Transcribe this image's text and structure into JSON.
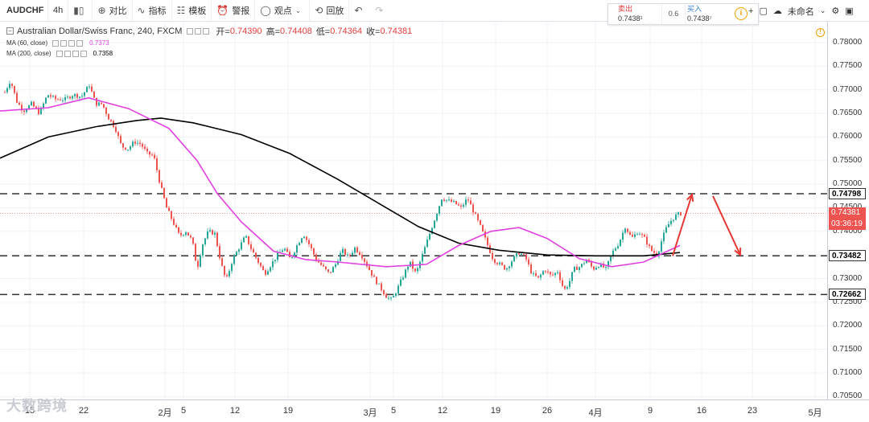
{
  "toolbar": {
    "symbol": "AUDCHF",
    "timeframe": "4h",
    "compare": "对比",
    "indicators": "指标",
    "templates": "模板",
    "alert": "警报",
    "ideas": "观点",
    "replay": "回放",
    "layout_name": "未命名"
  },
  "trade_panel": {
    "sell_label": "卖出",
    "sell_price": "0.7438¹",
    "spread": "0.6",
    "buy_label": "买入",
    "buy_price": "0.7438⁷"
  },
  "legend": {
    "title": "Australian Dollar/Swiss Franc, 240, FXCM",
    "open_label": "开=",
    "open": "0.74390",
    "high_label": "高=",
    "high": "0.74408",
    "low_label": "低=",
    "low": "0.74364",
    "close_label": "收=",
    "close": "0.74381",
    "ma60_label": "MA (60, close)",
    "ma60_value": "0.7373",
    "ma200_label": "MA (200, close)",
    "ma200_value": "0.7358"
  },
  "price_axis": {
    "labels": [
      "0.78000",
      "0.77500",
      "0.77000",
      "0.76500",
      "0.76000",
      "0.75500",
      "0.75000",
      "0.74500",
      "0.74000",
      "0.73500",
      "0.73000",
      "0.72500",
      "0.72000",
      "0.71500",
      "0.71000",
      "0.70500"
    ],
    "level_tags": [
      "0.74798",
      "0.73482",
      "0.72662"
    ],
    "current_price": "0.74381",
    "countdown": "03:36:19"
  },
  "time_axis": {
    "labels": [
      "15",
      "22",
      "2月",
      "5",
      "12",
      "19",
      "3月",
      "5",
      "12",
      "19",
      "26",
      "4月",
      "9",
      "16",
      "23",
      "5月"
    ]
  },
  "watermark": "大数跨境",
  "colors": {
    "up": "#26a69a",
    "down": "#ef5350",
    "ma60": "#e040e0",
    "ma200": "#000000",
    "arrows": "#e53935",
    "level_lines": "#333333",
    "price_tag_current": "#ef5350"
  },
  "chart_data": {
    "type": "candlestick",
    "title": "Australian Dollar/Swiss Franc, 240, FXCM",
    "ylim": [
      0.7045,
      0.7815
    ],
    "support_resistance_levels": [
      0.74798,
      0.73482,
      0.72662
    ],
    "current_price": 0.74381,
    "ma60_path": [
      [
        0,
        0.7655
      ],
      [
        60,
        0.7662
      ],
      [
        110,
        0.7683
      ],
      [
        160,
        0.766
      ],
      [
        210,
        0.7618
      ],
      [
        245,
        0.755
      ],
      [
        270,
        0.748
      ],
      [
        300,
        0.742
      ],
      [
        340,
        0.7358
      ],
      [
        380,
        0.734
      ],
      [
        420,
        0.7335
      ],
      [
        480,
        0.7325
      ],
      [
        530,
        0.733
      ],
      [
        570,
        0.737
      ],
      [
        610,
        0.74
      ],
      [
        645,
        0.7408
      ],
      [
        680,
        0.7385
      ],
      [
        720,
        0.7342
      ],
      [
        760,
        0.7325
      ],
      [
        800,
        0.7335
      ],
      [
        845,
        0.737
      ]
    ],
    "ma200_path": [
      [
        0,
        0.7555
      ],
      [
        60,
        0.76
      ],
      [
        120,
        0.7622
      ],
      [
        170,
        0.7635
      ],
      [
        200,
        0.764
      ],
      [
        240,
        0.763
      ],
      [
        300,
        0.7605
      ],
      [
        360,
        0.7565
      ],
      [
        420,
        0.751
      ],
      [
        470,
        0.746
      ],
      [
        520,
        0.741
      ],
      [
        570,
        0.7375
      ],
      [
        620,
        0.736
      ],
      [
        680,
        0.735
      ],
      [
        740,
        0.7348
      ],
      [
        800,
        0.7348
      ],
      [
        845,
        0.7355
      ]
    ],
    "price_path": [
      [
        5,
        0.7695
      ],
      [
        12,
        0.772
      ],
      [
        20,
        0.7675
      ],
      [
        28,
        0.7655
      ],
      [
        38,
        0.767
      ],
      [
        48,
        0.765
      ],
      [
        58,
        0.769
      ],
      [
        68,
        0.768
      ],
      [
        80,
        0.768
      ],
      [
        90,
        0.769
      ],
      [
        100,
        0.7685
      ],
      [
        110,
        0.771
      ],
      [
        118,
        0.767
      ],
      [
        126,
        0.767
      ],
      [
        134,
        0.764
      ],
      [
        142,
        0.762
      ],
      [
        150,
        0.758
      ],
      [
        158,
        0.7575
      ],
      [
        166,
        0.759
      ],
      [
        174,
        0.7585
      ],
      [
        182,
        0.7565
      ],
      [
        190,
        0.756
      ],
      [
        198,
        0.75
      ],
      [
        206,
        0.745
      ],
      [
        214,
        0.742
      ],
      [
        222,
        0.739
      ],
      [
        230,
        0.74
      ],
      [
        238,
        0.738
      ],
      [
        244,
        0.732
      ],
      [
        250,
        0.737
      ],
      [
        258,
        0.74
      ],
      [
        266,
        0.7395
      ],
      [
        274,
        0.733
      ],
      [
        280,
        0.7295
      ],
      [
        288,
        0.734
      ],
      [
        296,
        0.7365
      ],
      [
        304,
        0.739
      ],
      [
        312,
        0.736
      ],
      [
        320,
        0.7335
      ],
      [
        328,
        0.731
      ],
      [
        336,
        0.733
      ],
      [
        344,
        0.735
      ],
      [
        352,
        0.7365
      ],
      [
        360,
        0.734
      ],
      [
        368,
        0.737
      ],
      [
        376,
        0.7395
      ],
      [
        384,
        0.737
      ],
      [
        392,
        0.734
      ],
      [
        400,
        0.7325
      ],
      [
        408,
        0.731
      ],
      [
        416,
        0.733
      ],
      [
        424,
        0.736
      ],
      [
        432,
        0.7345
      ],
      [
        440,
        0.7365
      ],
      [
        448,
        0.735
      ],
      [
        456,
        0.7325
      ],
      [
        464,
        0.73
      ],
      [
        472,
        0.728
      ],
      [
        480,
        0.726
      ],
      [
        486,
        0.7255
      ],
      [
        492,
        0.7275
      ],
      [
        500,
        0.7305
      ],
      [
        508,
        0.7335
      ],
      [
        516,
        0.731
      ],
      [
        524,
        0.735
      ],
      [
        532,
        0.739
      ],
      [
        540,
        0.743
      ],
      [
        548,
        0.747
      ],
      [
        556,
        0.7465
      ],
      [
        564,
        0.746
      ],
      [
        572,
        0.745
      ],
      [
        580,
        0.747
      ],
      [
        588,
        0.744
      ],
      [
        596,
        0.741
      ],
      [
        604,
        0.7375
      ],
      [
        612,
        0.734
      ],
      [
        620,
        0.733
      ],
      [
        628,
        0.732
      ],
      [
        636,
        0.734
      ],
      [
        644,
        0.7355
      ],
      [
        652,
        0.7345
      ],
      [
        660,
        0.731
      ],
      [
        668,
        0.73
      ],
      [
        676,
        0.732
      ],
      [
        684,
        0.7305
      ],
      [
        692,
        0.7315
      ],
      [
        700,
        0.7275
      ],
      [
        706,
        0.729
      ],
      [
        712,
        0.732
      ],
      [
        720,
        0.7325
      ],
      [
        728,
        0.734
      ],
      [
        736,
        0.732
      ],
      [
        744,
        0.733
      ],
      [
        752,
        0.732
      ],
      [
        760,
        0.7355
      ],
      [
        768,
        0.7375
      ],
      [
        776,
        0.741
      ],
      [
        784,
        0.7385
      ],
      [
        792,
        0.74
      ],
      [
        800,
        0.7385
      ],
      [
        808,
        0.736
      ],
      [
        816,
        0.735
      ],
      [
        822,
        0.7385
      ],
      [
        828,
        0.741
      ],
      [
        834,
        0.7425
      ],
      [
        840,
        0.7435
      ],
      [
        846,
        0.7438
      ]
    ],
    "annotations": [
      {
        "type": "arrow",
        "from": [
          836,
          0.7348
        ],
        "to": [
          860,
          0.7478
        ]
      },
      {
        "type": "arrow",
        "from": [
          886,
          0.7475
        ],
        "to": [
          920,
          0.735
        ]
      }
    ]
  }
}
